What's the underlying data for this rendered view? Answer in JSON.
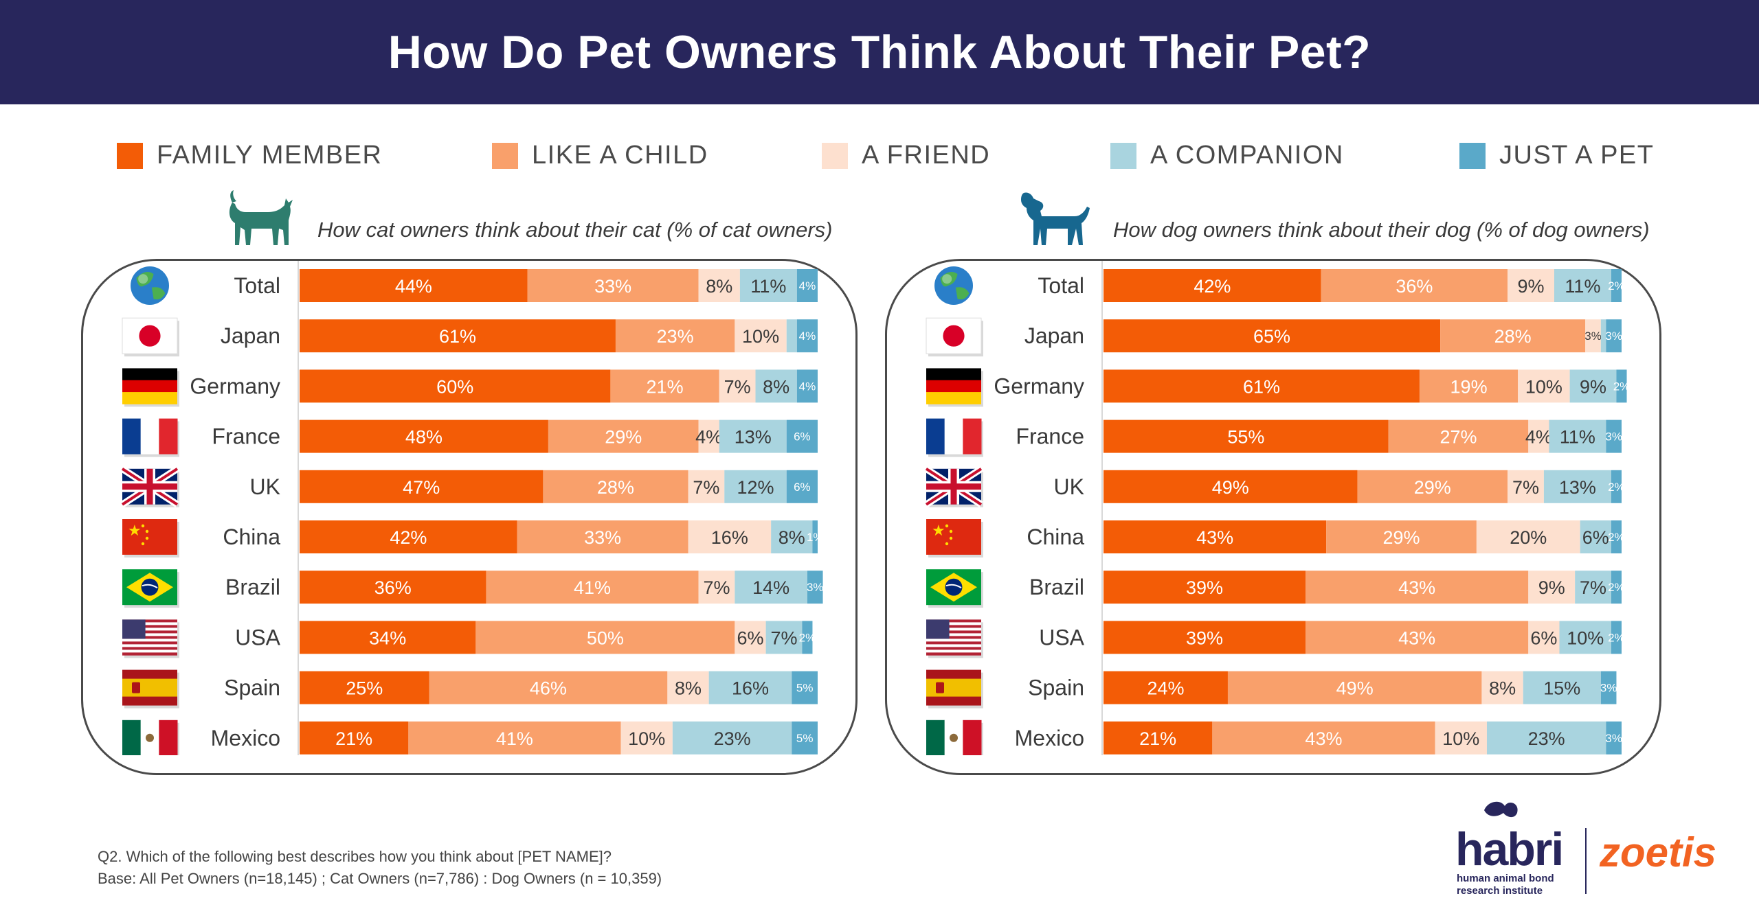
{
  "title": "How Do Pet Owners Think About Their Pet?",
  "legend": [
    {
      "label": "FAMILY MEMBER",
      "color": "#f35c06"
    },
    {
      "label": "LIKE A CHILD",
      "color": "#f9a06b"
    },
    {
      "label": "A FRIEND",
      "color": "#fde0cf"
    },
    {
      "label": "A COMPANION",
      "color": "#a9d4df"
    },
    {
      "label": "JUST A PET",
      "color": "#5aa9c9"
    }
  ],
  "countries": [
    {
      "name": "Total",
      "flag": "globe-icon"
    },
    {
      "name": "Japan",
      "flag": "japan-flag-icon"
    },
    {
      "name": "Germany",
      "flag": "germany-flag-icon"
    },
    {
      "name": "France",
      "flag": "france-flag-icon"
    },
    {
      "name": "UK",
      "flag": "uk-flag-icon"
    },
    {
      "name": "China",
      "flag": "china-flag-icon"
    },
    {
      "name": "Brazil",
      "flag": "brazil-flag-icon"
    },
    {
      "name": "USA",
      "flag": "usa-flag-icon"
    },
    {
      "name": "Spain",
      "flag": "spain-flag-icon"
    },
    {
      "name": "Mexico",
      "flag": "mexico-flag-icon"
    }
  ],
  "cat_panel": {
    "subtitle": "How cat owners think about their cat (% of cat owners)",
    "icon": "cat-icon",
    "icon_color": "#2e7d6e"
  },
  "dog_panel": {
    "subtitle": "How dog owners think about their  dog (% of dog owners)",
    "icon": "dog-icon",
    "icon_color": "#17678f"
  },
  "chart_data": [
    {
      "type": "bar",
      "stacked": true,
      "orientation": "horizontal",
      "title": "How cat owners think about their cat (% of cat owners)",
      "categories": [
        "Total",
        "Japan",
        "Germany",
        "France",
        "UK",
        "China",
        "Brazil",
        "USA",
        "Spain",
        "Mexico"
      ],
      "series": [
        {
          "name": "FAMILY MEMBER",
          "values": [
            44,
            61,
            60,
            48,
            47,
            42,
            36,
            34,
            25,
            21
          ]
        },
        {
          "name": "LIKE A CHILD",
          "values": [
            33,
            23,
            21,
            29,
            28,
            33,
            41,
            50,
            46,
            41
          ]
        },
        {
          "name": "A FRIEND",
          "values": [
            8,
            10,
            7,
            4,
            7,
            16,
            7,
            6,
            8,
            10
          ]
        },
        {
          "name": "A COMPANION",
          "values": [
            11,
            2,
            8,
            13,
            12,
            8,
            14,
            7,
            16,
            23
          ]
        },
        {
          "name": "JUST A PET",
          "values": [
            4,
            4,
            4,
            6,
            6,
            1,
            3,
            2,
            5,
            5
          ]
        }
      ],
      "labels": [
        [
          "44%",
          "33%",
          "8%",
          "11%",
          "4%"
        ],
        [
          "61%",
          "23%",
          "10%",
          "",
          "4%"
        ],
        [
          "60%",
          "21%",
          "7%",
          "8%",
          "4%"
        ],
        [
          "48%",
          "29%",
          "4%",
          "13%",
          "6%"
        ],
        [
          "47%",
          "28%",
          "7%",
          "12%",
          "6%"
        ],
        [
          "42%",
          "33%",
          "16%",
          "8%",
          "1%"
        ],
        [
          "36%",
          "41%",
          "7%",
          "14%",
          "3%"
        ],
        [
          "34%",
          "50%",
          "6%",
          "7%",
          "2%"
        ],
        [
          "25%",
          "46%",
          "8%",
          "16%",
          "5%"
        ],
        [
          "21%",
          "41%",
          "10%",
          "23%",
          "5%"
        ]
      ]
    },
    {
      "type": "bar",
      "stacked": true,
      "orientation": "horizontal",
      "title": "How dog owners think about their  dog (% of dog owners)",
      "categories": [
        "Total",
        "Japan",
        "Germany",
        "France",
        "UK",
        "China",
        "Brazil",
        "USA",
        "Spain",
        "Mexico"
      ],
      "series": [
        {
          "name": "FAMILY MEMBER",
          "values": [
            42,
            65,
            61,
            55,
            49,
            43,
            39,
            39,
            24,
            21
          ]
        },
        {
          "name": "LIKE A CHILD",
          "values": [
            36,
            28,
            19,
            27,
            29,
            29,
            43,
            43,
            49,
            43
          ]
        },
        {
          "name": "A FRIEND",
          "values": [
            9,
            3,
            10,
            4,
            7,
            20,
            9,
            6,
            8,
            10
          ]
        },
        {
          "name": "A COMPANION",
          "values": [
            11,
            1,
            9,
            11,
            13,
            6,
            7,
            10,
            15,
            23
          ]
        },
        {
          "name": "JUST A PET",
          "values": [
            2,
            3,
            2,
            3,
            2,
            2,
            2,
            2,
            3,
            3
          ]
        }
      ],
      "labels": [
        [
          "42%",
          "36%",
          "9%",
          "11%",
          "2%"
        ],
        [
          "65%",
          "28%",
          "3%",
          "",
          "3%"
        ],
        [
          "61%",
          "19%",
          "10%",
          "9%",
          "2%"
        ],
        [
          "55%",
          "27%",
          "4%",
          "11%",
          "3%"
        ],
        [
          "49%",
          "29%",
          "7%",
          "13%",
          "2%"
        ],
        [
          "43%",
          "29%",
          "20%",
          "6%",
          "2%"
        ],
        [
          "39%",
          "43%",
          "9%",
          "7%",
          "2%"
        ],
        [
          "39%",
          "43%",
          "6%",
          "10%",
          "2%"
        ],
        [
          "24%",
          "49%",
          "8%",
          "15%",
          "3%"
        ],
        [
          "21%",
          "43%",
          "10%",
          "23%",
          "3%"
        ]
      ]
    }
  ],
  "footnote": {
    "line1": "Q2. Which of the following best describes how you think about [PET NAME]?",
    "line2": "Base: All Pet Owners (n=18,145) ; Cat Owners (n=7,786) : Dog Owners (n = 10,359)"
  },
  "logos": {
    "habri_word": "habri",
    "habri_tagline_1": "human animal bond",
    "habri_tagline_2": "research institute",
    "habri_color": "#28265c",
    "zoetis_word": "zoetis",
    "zoetis_color": "#f26322"
  }
}
